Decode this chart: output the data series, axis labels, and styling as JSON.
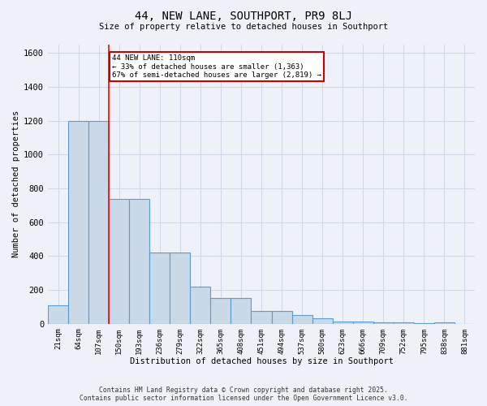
{
  "title": "44, NEW LANE, SOUTHPORT, PR9 8LJ",
  "subtitle": "Size of property relative to detached houses in Southport",
  "xlabel": "Distribution of detached houses by size in Southport",
  "ylabel": "Number of detached properties",
  "bin_labels": [
    "21sqm",
    "64sqm",
    "107sqm",
    "150sqm",
    "193sqm",
    "236sqm",
    "279sqm",
    "322sqm",
    "365sqm",
    "408sqm",
    "451sqm",
    "494sqm",
    "537sqm",
    "580sqm",
    "623sqm",
    "666sqm",
    "709sqm",
    "752sqm",
    "795sqm",
    "838sqm",
    "881sqm"
  ],
  "bar_values": [
    110,
    1200,
    1200,
    740,
    740,
    420,
    420,
    220,
    150,
    150,
    75,
    75,
    50,
    30,
    15,
    15,
    10,
    10,
    5,
    10,
    0
  ],
  "bar_color": "#c9d9e8",
  "bar_edge_color": "#5b9bd5",
  "grid_color": "#d0d8e8",
  "background_color": "#eef2f8",
  "red_line_x": 2.5,
  "annotation_box_text": "44 NEW LANE: 110sqm\n← 33% of detached houses are smaller (1,363)\n67% of semi-detached houses are larger (2,819) →",
  "annotation_box_color": "#ffffff",
  "annotation_box_edge_color": "#cc0000",
  "annotation_text_fontsize": 6.5,
  "ylim": [
    0,
    1650
  ],
  "yticks": [
    0,
    200,
    400,
    600,
    800,
    1000,
    1200,
    1400,
    1600
  ],
  "footer_line1": "Contains HM Land Registry data © Crown copyright and database right 2025.",
  "footer_line2": "Contains public sector information licensed under the Open Government Licence v3.0."
}
